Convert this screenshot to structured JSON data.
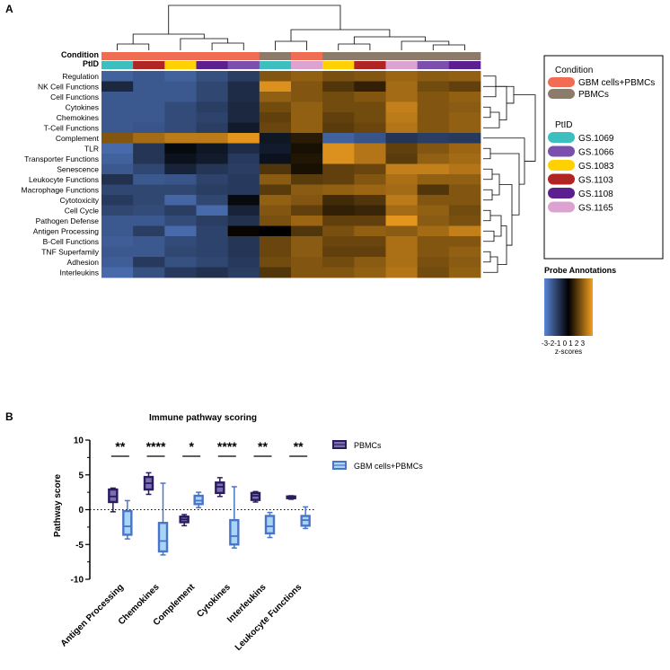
{
  "chart_data": [
    {
      "panel_label": "A",
      "type": "heatmap",
      "row_header_labels": [
        "Condition",
        "PtID"
      ],
      "rows": [
        "Regulation",
        "NK Cell Functions",
        "Cell Functions",
        "Cytokines",
        "Chemokines",
        "T-Cell Functions",
        "Complement",
        "TLR",
        "Transporter Functions",
        "Senescence",
        "Leukocyte Functions",
        "Macrophage Functions",
        "Cytotoxicity",
        "Cell Cycle",
        "Pathogen Defense",
        "Antigen Processing",
        "B-Cell Functions",
        "TNF Superfamily",
        "Adhesion",
        "Interleukins"
      ],
      "columns": [
        {
          "condition": "GBM cells+PBMCs",
          "ptid": "GS.1069"
        },
        {
          "condition": "GBM cells+PBMCs",
          "ptid": "GS.1103"
        },
        {
          "condition": "GBM cells+PBMCs",
          "ptid": "GS.1083"
        },
        {
          "condition": "GBM cells+PBMCs",
          "ptid": "GS.1108"
        },
        {
          "condition": "GBM cells+PBMCs",
          "ptid": "GS.1066"
        },
        {
          "condition": "PBMCs",
          "ptid": "GS.1069"
        },
        {
          "condition": "GBM cells+PBMCs",
          "ptid": "GS.1165"
        },
        {
          "condition": "PBMCs",
          "ptid": "GS.1083"
        },
        {
          "condition": "PBMCs",
          "ptid": "GS.1103"
        },
        {
          "condition": "PBMCs",
          "ptid": "GS.1165"
        },
        {
          "condition": "PBMCs",
          "ptid": "GS.1066"
        },
        {
          "condition": "PBMCs",
          "ptid": "GS.1108"
        }
      ],
      "z_scores": [
        [
          -2.2,
          -2.0,
          -2.2,
          -1.8,
          -1.4,
          1.6,
          1.8,
          1.5,
          1.6,
          1.9,
          1.7,
          1.8
        ],
        [
          -0.9,
          -2.0,
          -2.0,
          -1.6,
          -1.0,
          2.7,
          1.6,
          1.0,
          0.6,
          2.0,
          1.4,
          1.2
        ],
        [
          -2.0,
          -2.0,
          -2.0,
          -1.6,
          -1.0,
          1.8,
          1.6,
          1.4,
          1.6,
          2.0,
          1.6,
          1.8
        ],
        [
          -2.0,
          -2.0,
          -1.7,
          -1.4,
          -0.9,
          1.4,
          1.8,
          1.4,
          1.4,
          2.4,
          1.6,
          1.7
        ],
        [
          -2.0,
          -2.0,
          -1.7,
          -1.5,
          -0.9,
          1.2,
          1.8,
          1.2,
          1.4,
          2.3,
          1.6,
          1.8
        ],
        [
          -2.0,
          -1.9,
          -1.7,
          -1.4,
          -0.6,
          1.3,
          1.8,
          1.1,
          1.3,
          2.2,
          1.6,
          1.8
        ],
        [
          1.6,
          2.0,
          2.3,
          2.3,
          2.8,
          -0.5,
          0.5,
          -2.2,
          -1.9,
          -1.2,
          -1.4,
          -1.3
        ],
        [
          -2.4,
          -1.2,
          -0.2,
          -0.5,
          -1.0,
          -0.6,
          0.3,
          2.7,
          2.2,
          1.2,
          1.6,
          1.9
        ],
        [
          -2.2,
          -1.2,
          -0.4,
          -0.6,
          -1.3,
          -0.4,
          0.4,
          2.7,
          2.2,
          1.1,
          1.8,
          2.0
        ],
        [
          -2.0,
          -1.6,
          -0.8,
          -1.2,
          -1.4,
          1.0,
          0.3,
          1.2,
          1.3,
          2.4,
          2.4,
          2.2
        ],
        [
          -1.1,
          -2.0,
          -1.9,
          -1.5,
          -1.3,
          1.7,
          1.1,
          1.2,
          1.6,
          2.1,
          1.8,
          1.8
        ],
        [
          -1.6,
          -1.6,
          -1.6,
          -1.4,
          -1.3,
          1.1,
          1.7,
          1.8,
          1.9,
          2.0,
          1.0,
          1.6
        ],
        [
          -1.3,
          -1.6,
          -2.3,
          -1.6,
          -0.2,
          1.8,
          1.6,
          0.8,
          1.0,
          2.3,
          1.6,
          1.6
        ],
        [
          -1.6,
          -1.7,
          -1.4,
          -2.4,
          -0.8,
          1.6,
          1.2,
          0.6,
          0.7,
          2.0,
          1.8,
          1.4
        ],
        [
          -2.0,
          -2.0,
          -1.7,
          -1.4,
          -1.1,
          1.5,
          1.9,
          1.2,
          1.2,
          2.8,
          1.7,
          1.5
        ],
        [
          -2.0,
          -1.4,
          -2.4,
          -1.5,
          0.1,
          0.0,
          1.0,
          1.5,
          1.8,
          1.7,
          2.0,
          2.4
        ],
        [
          -2.1,
          -2.0,
          -1.7,
          -1.5,
          -1.2,
          1.3,
          1.7,
          1.3,
          1.3,
          2.1,
          1.6,
          1.6
        ],
        [
          -2.0,
          -2.0,
          -1.6,
          -1.5,
          -1.2,
          1.3,
          1.7,
          1.2,
          1.2,
          2.1,
          1.6,
          1.8
        ],
        [
          -2.1,
          -1.3,
          -1.8,
          -1.6,
          -1.3,
          1.4,
          1.6,
          1.4,
          1.7,
          2.1,
          1.5,
          1.7
        ],
        [
          -2.4,
          -1.8,
          -1.3,
          -1.1,
          -1.4,
          1.0,
          1.6,
          1.6,
          1.8,
          2.2,
          1.4,
          1.8
        ]
      ],
      "colorscale": {
        "low": "#5a85d6",
        "mid": "#000000",
        "high": "#f4a020"
      },
      "legend": {
        "condition_title": "Condition",
        "conditions": [
          {
            "label": "GBM cells+PBMCs",
            "color": "#f06c52"
          },
          {
            "label": "PBMCs",
            "color": "#8c7a6b"
          }
        ],
        "ptid_title": "PtID",
        "ptids": [
          {
            "label": "GS.1069",
            "color": "#3dbfbf"
          },
          {
            "label": "GS.1066",
            "color": "#7a4fad"
          },
          {
            "label": "GS.1083",
            "color": "#ffd100"
          },
          {
            "label": "GS.1103",
            "color": "#b02424"
          },
          {
            "label": "GS.1108",
            "color": "#5c1f8f"
          },
          {
            "label": "GS.1165",
            "color": "#dca3d0"
          }
        ]
      },
      "color_bar": {
        "title": "Probe Annotations",
        "range": [
          -3,
          3
        ],
        "tick_text": "-3-2-1 0  1  2  3",
        "label": "z-scores"
      }
    },
    {
      "panel_label": "B",
      "type": "box",
      "title": "Immune pathway scoring",
      "ylabel": "Pathway score",
      "ylim": [
        -10,
        10
      ],
      "yticks": [
        "-10",
        "-5",
        "0",
        "5",
        "10"
      ],
      "categories": [
        "Antigen Processing",
        "Chemokines",
        "Complement",
        "Cytokines",
        "Interleukins",
        "Leukocyte Functions"
      ],
      "significance": [
        "**",
        "****",
        "*",
        "****",
        "**",
        "**"
      ],
      "series": [
        {
          "name": "PBMCs",
          "color": "#2a1a5e",
          "boxes": [
            {
              "min": -0.3,
              "q1": 1.1,
              "median": 1.9,
              "q3": 2.9,
              "max": 3.1
            },
            {
              "min": 2.2,
              "q1": 2.9,
              "median": 3.8,
              "q3": 4.7,
              "max": 5.3
            },
            {
              "min": -2.3,
              "q1": -1.8,
              "median": -1.4,
              "q3": -1.0,
              "max": -0.7
            },
            {
              "min": 1.9,
              "q1": 2.4,
              "median": 3.3,
              "q3": 3.9,
              "max": 4.6
            },
            {
              "min": 1.1,
              "q1": 1.4,
              "median": 2.0,
              "q3": 2.4,
              "max": 2.6
            },
            {
              "min": 1.5,
              "q1": 1.65,
              "median": 1.8,
              "q3": 1.9,
              "max": 2.0
            }
          ]
        },
        {
          "name": "GBM cells+PBMCs",
          "color": "#4a74c8",
          "boxes": [
            {
              "min": -4.2,
              "q1": -3.6,
              "median": -2.4,
              "q3": -0.2,
              "max": 1.3
            },
            {
              "min": -6.5,
              "q1": -6.0,
              "median": -4.5,
              "q3": -1.9,
              "max": 3.8
            },
            {
              "min": 0.3,
              "q1": 0.8,
              "median": 1.3,
              "q3": 2.0,
              "max": 2.5
            },
            {
              "min": -5.5,
              "q1": -5.0,
              "median": -3.8,
              "q3": -1.5,
              "max": 3.3
            },
            {
              "min": -4.0,
              "q1": -3.4,
              "median": -2.4,
              "q3": -0.9,
              "max": -0.4
            },
            {
              "min": -2.7,
              "q1": -2.3,
              "median": -1.5,
              "q3": -0.9,
              "max": 0.4
            }
          ]
        }
      ]
    }
  ]
}
